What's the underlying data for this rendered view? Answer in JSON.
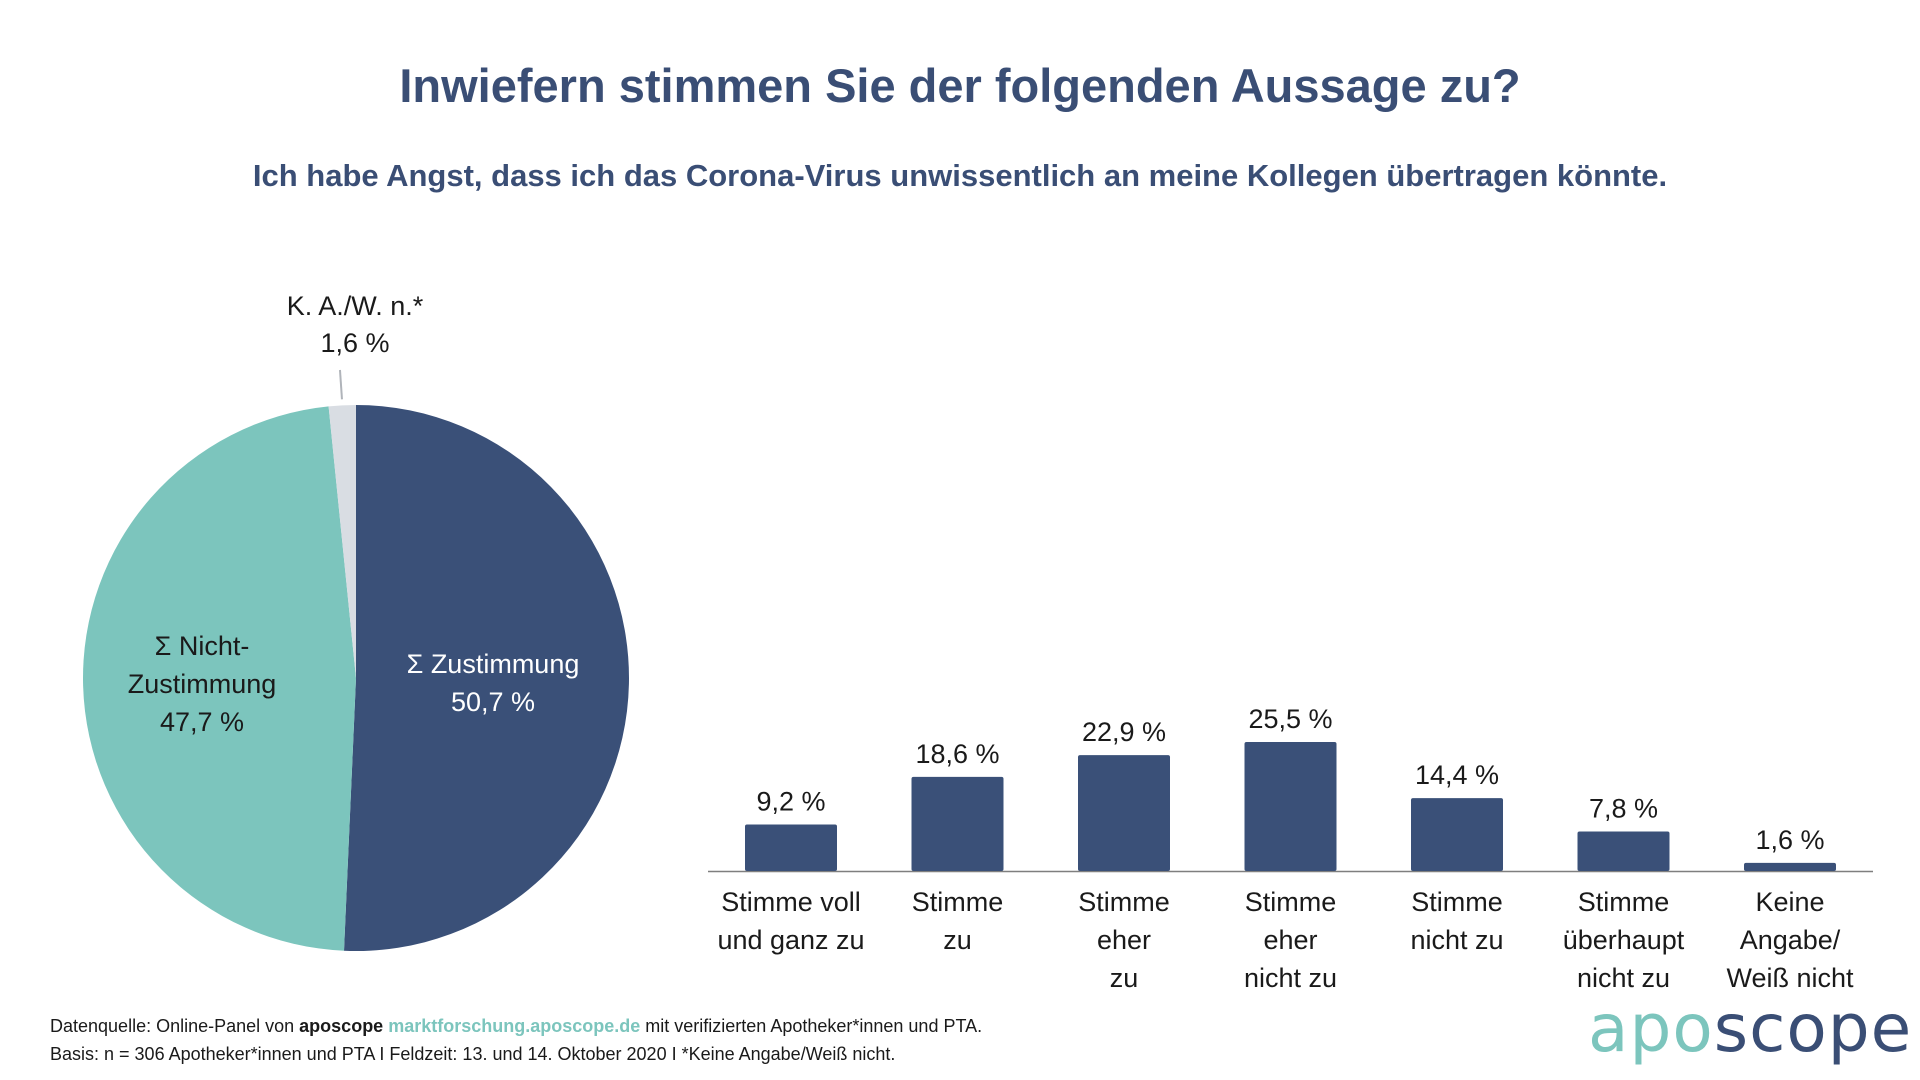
{
  "title": "Inwiefern stimmen Sie der folgenden Aussage zu?",
  "subtitle": "Ich habe Angst, dass ich das Corona-Virus unwissentlich an meine Kollegen übertragen könnte.",
  "chart_data": [
    {
      "type": "pie",
      "slices": [
        {
          "label_lines": [
            "Σ Zustimmung"
          ],
          "value": 50.7,
          "value_label": "50,7 %",
          "color": "#3a5078"
        },
        {
          "label_lines": [
            "Σ Nicht-",
            "Zustimmung"
          ],
          "value": 47.7,
          "value_label": "47,7 %",
          "color": "#7cc5bd"
        },
        {
          "label_lines": [
            "K. A./W. n.*"
          ],
          "value": 1.6,
          "value_label": "1,6 %",
          "color": "#d9dde3"
        }
      ]
    },
    {
      "type": "bar",
      "categories": [
        "Stimme voll\nund ganz zu",
        "Stimme\nzu",
        "Stimme\neher\nzu",
        "Stimme\neher\nnicht zu",
        "Stimme\nnicht zu",
        "Stimme\nüberhaupt\nnicht zu",
        "Keine Angabe/\nWeiß nicht"
      ],
      "values": [
        9.2,
        18.6,
        22.9,
        25.5,
        14.4,
        7.8,
        1.6
      ],
      "value_labels": [
        "9,2 %",
        "18,6 %",
        "22,9 %",
        "25,5 %",
        "14,4 %",
        "7,8 %",
        "1,6 %"
      ],
      "color": "#3a5078"
    }
  ],
  "footer": {
    "line1_prefix": "Datenquelle: Online-Panel von ",
    "brand": "aposcope",
    "link": "marktforschung.aposcope.de",
    "line1_suffix": " mit verifizierten Apotheker*innen und PTA.",
    "line2": "Basis: n = 306 Apotheker*innen und PTA I Feldzeit: 13. und 14. Oktober 2020 I *Keine Angabe/Weiß nicht."
  },
  "logo": {
    "part1": "apo",
    "part2": "scope"
  }
}
